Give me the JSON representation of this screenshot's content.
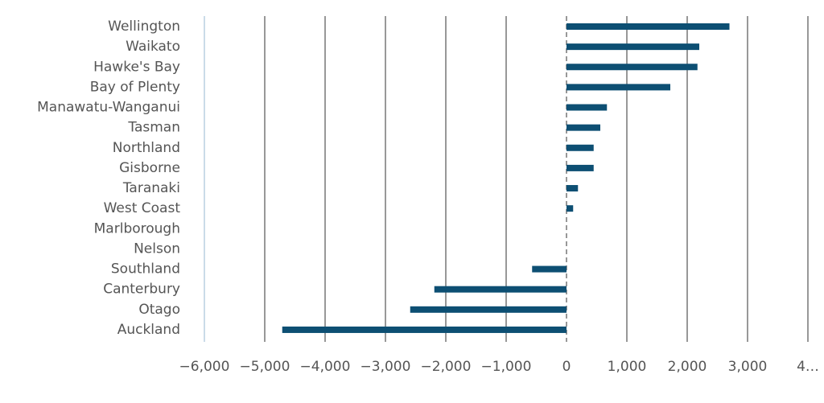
{
  "chart_data": {
    "type": "barh",
    "categories": [
      "Wellington",
      "Waikato",
      "Hawke's Bay",
      "Bay of Plenty",
      "Manawatu-Wanganui",
      "Tasman",
      "Northland",
      "Gisborne",
      "Taranaki",
      "West Coast",
      "Marlborough",
      "Nelson",
      "Southland",
      "Canterbury",
      "Otago",
      "Auckland"
    ],
    "values": [
      2700,
      2200,
      2170,
      1720,
      670,
      560,
      450,
      450,
      190,
      110,
      0,
      0,
      -570,
      -2190,
      -2590,
      -4710
    ],
    "color": "#0d4f73",
    "xlim": [
      -6000,
      4000
    ],
    "xticks": [
      {
        "value": -6000,
        "label": "−6,000"
      },
      {
        "value": -5000,
        "label": "−5,000"
      },
      {
        "value": -4000,
        "label": "−4,000"
      },
      {
        "value": -3000,
        "label": "−3,000"
      },
      {
        "value": -2000,
        "label": "−2,000"
      },
      {
        "value": -1000,
        "label": "−1,000"
      },
      0,
      {
        "value": 1000,
        "label": "1,000"
      },
      {
        "value": 2000,
        "label": "2,000"
      },
      {
        "value": 3000,
        "label": "3,000"
      },
      {
        "value": 4000,
        "label": "4…"
      }
    ],
    "grid": true
  }
}
